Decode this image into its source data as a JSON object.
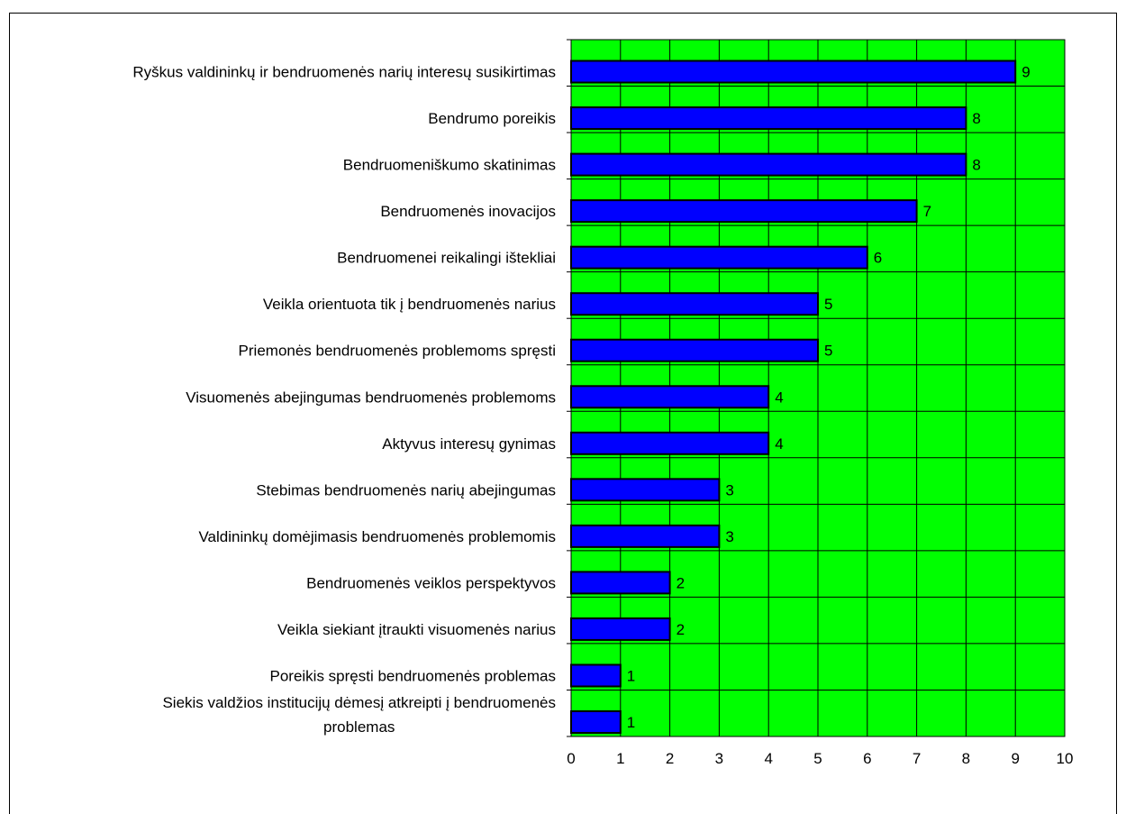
{
  "chart_data": {
    "type": "bar",
    "orientation": "horizontal",
    "title": "",
    "xlabel": "",
    "ylabel": "",
    "categories": [
      "Ryškus valdininkų ir bendruomenės narių interesų susikirtimas",
      "Bendrumo poreikis",
      "Bendruomeniškumo skatinimas",
      "Bendruomenės inovacijos",
      "Bendruomenei reikalingi ištekliai",
      "Veikla orientuota tik į bendruomenės narius",
      "Priemonės bendruomenės problemoms spręsti",
      "Visuomenės abejingumas bendruomenės problemoms",
      "Aktyvus interesų gynimas",
      "Stebimas bendruomenės narių abejingumas",
      "Valdininkų domėjimasis bendruomenės problemomis",
      "Bendruomenės veiklos perspektyvos",
      "Veikla siekiant įtraukti visuomenės narius",
      "Poreikis spręsti bendruomenės problemas",
      "Siekis valdžios institucijų dėmesį atkreipti į bendruomenės problemas"
    ],
    "category_lines": [
      [
        "Ryškus valdininkų ir bendruomenės narių interesų susikirtimas"
      ],
      [
        "Bendrumo poreikis"
      ],
      [
        "Bendruomeniškumo skatinimas"
      ],
      [
        "Bendruomenės inovacijos"
      ],
      [
        "Bendruomenei reikalingi ištekliai"
      ],
      [
        "Veikla orientuota tik į bendruomenės narius"
      ],
      [
        "Priemonės bendruomenės problemoms spręsti"
      ],
      [
        "Visuomenės abejingumas bendruomenės problemoms"
      ],
      [
        "Aktyvus interesų gynimas"
      ],
      [
        "Stebimas bendruomenės narių abejingumas"
      ],
      [
        "Valdininkų domėjimasis bendruomenės problemomis"
      ],
      [
        "Bendruomenės veiklos perspektyvos"
      ],
      [
        "Veikla siekiant įtraukti visuomenės narius"
      ],
      [
        "Poreikis spręsti bendruomenės problemas"
      ],
      [
        "Siekis valdžios institucijų dėmesį atkreipti į bendruomenės",
        "problemas"
      ]
    ],
    "values": [
      9,
      8,
      8,
      7,
      6,
      5,
      5,
      4,
      4,
      3,
      3,
      2,
      2,
      1,
      1
    ],
    "xlim": [
      0,
      10
    ],
    "xticks": [
      "0",
      "1",
      "2",
      "3",
      "4",
      "5",
      "6",
      "7",
      "8",
      "9",
      "10"
    ],
    "grid": true,
    "legend": "none",
    "colors": {
      "plot_background": "#00ff00",
      "bar_fill": "#0000ff",
      "bar_stroke": "#000000",
      "grid": "#000000",
      "frame": "#000000"
    }
  }
}
